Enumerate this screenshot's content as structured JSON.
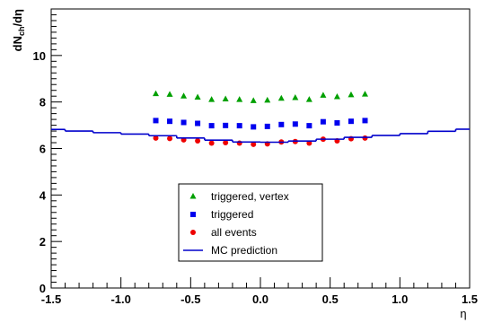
{
  "chart_data": {
    "type": "scatter",
    "title": "",
    "xlabel": "η",
    "ylabel": "dN_ch/dη",
    "xlim": [
      -1.5,
      1.5
    ],
    "ylim": [
      0,
      12
    ],
    "x_ticks": [
      {
        "value": -1.5,
        "label": "-1.5"
      },
      {
        "value": -1.0,
        "label": "-1.0"
      },
      {
        "value": -0.5,
        "label": "-0.5"
      },
      {
        "value": 0.0,
        "label": "0.0"
      },
      {
        "value": 0.5,
        "label": "0.5"
      },
      {
        "value": 1.0,
        "label": "1.0"
      },
      {
        "value": 1.5,
        "label": "1.5"
      }
    ],
    "y_ticks": [
      {
        "value": 0,
        "label": "0"
      },
      {
        "value": 2,
        "label": "2"
      },
      {
        "value": 4,
        "label": "4"
      },
      {
        "value": 6,
        "label": "6"
      },
      {
        "value": 8,
        "label": "8"
      },
      {
        "value": 10,
        "label": "10"
      }
    ],
    "grid": false,
    "legend_position": "bottom-center",
    "series": [
      {
        "name": "triggered, vertex",
        "marker": "triangle",
        "color": "#00a000",
        "x": [
          -0.75,
          -0.65,
          -0.55,
          -0.45,
          -0.35,
          -0.25,
          -0.15,
          -0.05,
          0.05,
          0.15,
          0.25,
          0.35,
          0.45,
          0.55,
          0.65,
          0.75
        ],
        "y": [
          8.35,
          8.32,
          8.25,
          8.2,
          8.1,
          8.12,
          8.1,
          8.05,
          8.07,
          8.15,
          8.18,
          8.1,
          8.28,
          8.22,
          8.3,
          8.33
        ]
      },
      {
        "name": "triggered",
        "marker": "square",
        "color": "#0000ee",
        "x": [
          -0.75,
          -0.65,
          -0.55,
          -0.45,
          -0.35,
          -0.25,
          -0.15,
          -0.05,
          0.05,
          0.15,
          0.25,
          0.35,
          0.45,
          0.55,
          0.65,
          0.75
        ],
        "y": [
          7.2,
          7.17,
          7.12,
          7.08,
          6.98,
          6.99,
          6.98,
          6.93,
          6.95,
          7.03,
          7.05,
          6.98,
          7.15,
          7.1,
          7.17,
          7.2
        ]
      },
      {
        "name": "all events",
        "marker": "circle",
        "color": "#ee0000",
        "x": [
          -0.75,
          -0.65,
          -0.55,
          -0.45,
          -0.35,
          -0.25,
          -0.15,
          -0.05,
          0.05,
          0.15,
          0.25,
          0.35,
          0.45,
          0.55,
          0.65,
          0.75
        ],
        "y": [
          6.45,
          6.43,
          6.37,
          6.33,
          6.23,
          6.25,
          6.23,
          6.18,
          6.2,
          6.28,
          6.3,
          6.23,
          6.4,
          6.33,
          6.42,
          6.45
        ]
      },
      {
        "name": "MC prediction",
        "type": "step",
        "color": "#0000cc",
        "bin_edges": [
          -1.6,
          -1.4,
          -1.2,
          -1.0,
          -0.8,
          -0.6,
          -0.4,
          -0.2,
          0.0,
          0.2,
          0.4,
          0.6,
          0.8,
          1.0,
          1.2,
          1.4,
          1.6
        ],
        "values": [
          6.82,
          6.75,
          6.68,
          6.62,
          6.55,
          6.45,
          6.36,
          6.28,
          6.27,
          6.32,
          6.4,
          6.48,
          6.56,
          6.64,
          6.74,
          6.83
        ]
      }
    ]
  }
}
